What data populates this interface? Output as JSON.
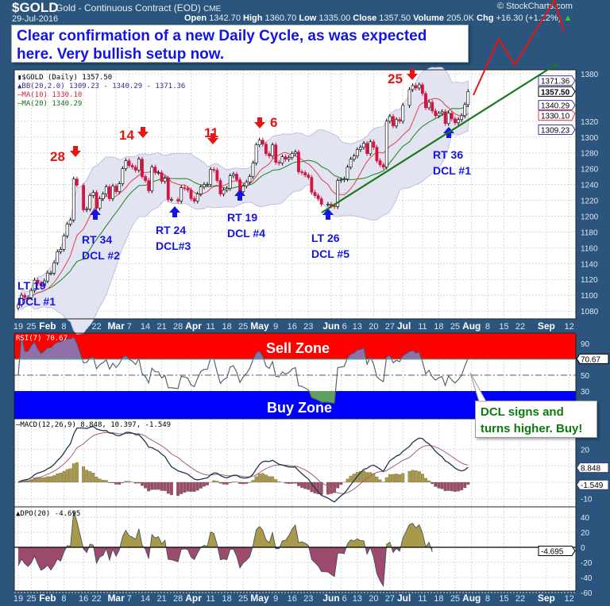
{
  "header": {
    "symbol": "$GOLD",
    "name": "Gold - Continuous Contract (EOD)",
    "exchange": "CME",
    "date": "29-Jul-2016",
    "open_label": "Open",
    "open": "1342.70",
    "high_label": "High",
    "high": "1360.70",
    "low_label": "Low",
    "low": "1335.00",
    "close_label": "Close",
    "close": "1357.50",
    "volume_label": "Volume",
    "volume": "205.0K",
    "chg_label": "Chg",
    "chg": "+16.30 (+1.22%)",
    "brand": "© StockCharts.com"
  },
  "annotation": "Clear confirmation of a new Daily Cycle, as was expected here.  Very bullish setup now.",
  "callout": "DCL signs and turns higher.  Buy!",
  "cycle_labels": {
    "tops": [
      "28",
      "14",
      "11",
      "6",
      "25"
    ],
    "lows": [
      {
        "line1": "LT 19",
        "line2": "DCL #1"
      },
      {
        "line1": "RT 34",
        "line2": "DCL #2"
      },
      {
        "line1": "RT 24",
        "line2": "DCL#3"
      },
      {
        "line1": "RT 19",
        "line2": "DCL #4"
      },
      {
        "line1": "LT 26",
        "line2": "DCL #5"
      },
      {
        "line1": "RT 36",
        "line2": "DCL #1"
      }
    ]
  },
  "zones": {
    "sell": "Sell Zone",
    "buy": "Buy Zone"
  },
  "legends": {
    "price": "$GOLD (Daily) 1357.50",
    "bb": "BB(20,2.0) 1309.23 - 1340.29 - 1371.36",
    "ma10": "MA(10) 1330.10",
    "ma20": "MA(20) 1340.29",
    "rsi": "RSI(7) 70.67",
    "macd": "MACD(12,26,9) 8.848, 10.397, -1.549",
    "dpo": "DPO(20) -4.695"
  },
  "colors": {
    "frame": "#2b557d",
    "up_candle": "#ffffff",
    "down_candle": "#d4143f",
    "ma10": "#e0404a",
    "ma20": "#2a8a2a",
    "bb_fill": "#e3e4f2",
    "sell_zone": "#ff0000",
    "buy_zone": "#0000ff",
    "trendline": "#1a7a1a",
    "projection": "#ee1111",
    "annotation_text": "#1414e6",
    "hist_pos": "#a89a4a",
    "hist_neg": "#9c4a6e"
  },
  "chart_data": [
    {
      "type": "candlestick",
      "title": "$GOLD (Daily) 1357.50",
      "x_unit": "weekday rows, Monday to Friday",
      "weeks": [
        {
          "week": "2016-01-18",
          "closes": [
            null,
            1088,
            1100,
            1097,
            1097
          ]
        },
        {
          "week": "2016-01-25",
          "closes": [
            1106,
            1119,
            1115,
            1112,
            1118
          ]
        },
        {
          "week": "2016-02-01",
          "closes": [
            1128,
            1128,
            1141,
            1155,
            1158
          ]
        },
        {
          "week": "2016-02-08",
          "closes": [
            1175,
            1190,
            1195,
            1247,
            1239
          ]
        },
        {
          "week": "2016-02-15",
          "closes": [
            null,
            1208,
            1209,
            1226,
            1230
          ]
        },
        {
          "week": "2016-02-22",
          "closes": [
            1210,
            1222,
            1228,
            1237,
            1222
          ]
        },
        {
          "week": "2016-02-29",
          "closes": [
            1238,
            1231,
            1241,
            1260,
            1270
          ]
        },
        {
          "week": "2016-03-07",
          "closes": [
            1264,
            1262,
            1258,
            1272,
            1250
          ]
        },
        {
          "week": "2016-03-14",
          "closes": [
            1245,
            1232,
            1262,
            1255,
            1255
          ]
        },
        {
          "week": "2016-03-21",
          "closes": [
            1244,
            1248,
            1221,
            1221,
            null
          ]
        },
        {
          "week": "2016-03-28",
          "closes": [
            1219,
            1236,
            1235,
            1233,
            1222
          ]
        },
        {
          "week": "2016-04-04",
          "closes": [
            1219,
            1228,
            1237,
            1240,
            1240
          ]
        },
        {
          "week": "2016-04-11",
          "closes": [
            1259,
            1258,
            1245,
            1228,
            1233
          ]
        },
        {
          "week": "2016-04-18",
          "closes": [
            1235,
            1251,
            1253,
            1246,
            1231
          ]
        },
        {
          "week": "2016-04-25",
          "closes": [
            1238,
            1243,
            1250,
            1267,
            1290
          ]
        },
        {
          "week": "2016-05-02",
          "closes": [
            1296,
            1291,
            1279,
            1276,
            1290
          ]
        },
        {
          "week": "2016-05-09",
          "closes": [
            1268,
            1267,
            1275,
            1272,
            1274
          ]
        },
        {
          "week": "2016-05-16",
          "closes": [
            1279,
            1281,
            1256,
            1255,
            1252
          ]
        },
        {
          "week": "2016-05-23",
          "closes": [
            1249,
            1230,
            1226,
            1222,
            1215
          ]
        },
        {
          "week": "2016-05-30",
          "closes": [
            null,
            1215,
            1213,
            1212,
            1245
          ]
        },
        {
          "week": "2016-06-06",
          "closes": [
            1246,
            1247,
            1262,
            1272,
            1276
          ]
        },
        {
          "week": "2016-06-13",
          "closes": [
            1284,
            1287,
            1292,
            1279,
            1294
          ]
        },
        {
          "week": "2016-06-20",
          "closes": [
            1287,
            1270,
            1265,
            1262,
            1320
          ]
        },
        {
          "week": "2016-06-27",
          "closes": [
            1326,
            1314,
            1322,
            1320,
            1340
          ]
        },
        {
          "week": "2016-07-04",
          "closes": [
            null,
            1360,
            1365,
            1362,
            1366
          ]
        },
        {
          "week": "2016-07-11",
          "closes": [
            1355,
            1337,
            1344,
            1333,
            1327
          ]
        },
        {
          "week": "2016-07-18",
          "closes": [
            1330,
            1332,
            1317,
            1330,
            1323
          ]
        },
        {
          "week": "2016-07-25",
          "closes": [
            1318,
            1322,
            1327,
            1341,
            1357.5
          ]
        }
      ],
      "ylim": [
        1070,
        1385
      ],
      "y_ticks": [
        1080,
        1100,
        1120,
        1140,
        1160,
        1180,
        1200,
        1220,
        1240,
        1260,
        1280,
        1300,
        1320,
        1380
      ],
      "price_tags": [
        {
          "label": "1371.36",
          "value": 1371.36,
          "color": "#3a3ab0"
        },
        {
          "label": "1357.50",
          "value": 1357.5,
          "color": "#000000"
        },
        {
          "label": "1340.29",
          "value": 1340.29,
          "color": "#3a3ab0"
        },
        {
          "label": "1330.10",
          "value": 1330.1,
          "color": "#e0404a"
        },
        {
          "label": "1309.23",
          "value": 1309.23,
          "color": "#3a3ab0"
        }
      ],
      "overlays": [
        "BB(20,2.0)",
        "MA(10)",
        "MA(20)"
      ],
      "grid": true
    },
    {
      "type": "line",
      "name": "RSI(7)",
      "ylim": [
        20,
        100
      ],
      "y_ticks": [
        90,
        50,
        30
      ],
      "last_tag": "70.67",
      "bands": {
        "sell_above": 70,
        "buy_below": 30
      }
    },
    {
      "type": "line",
      "name": "MACD(12,26,9)",
      "ylim": [
        -15,
        38
      ],
      "y_ticks": [
        20,
        -10
      ],
      "tags": [
        "8.848",
        "-1.549"
      ]
    },
    {
      "type": "area",
      "name": "DPO(20)",
      "ylim": [
        -62,
        50
      ],
      "y_ticks": [
        40,
        20,
        0,
        -20,
        -40,
        -60
      ],
      "last_tag": "-4.695"
    }
  ],
  "x_ticks": [
    {
      "label": "19",
      "date": "2016-01-19"
    },
    {
      "label": "25",
      "date": "2016-01-25"
    },
    {
      "label": "Feb",
      "date": "2016-02-01",
      "bold": true
    },
    {
      "label": "8",
      "date": "2016-02-08"
    },
    {
      "label": "16",
      "date": "2016-02-16"
    },
    {
      "label": "22",
      "date": "2016-02-22"
    },
    {
      "label": "Mar",
      "date": "2016-03-01",
      "bold": true
    },
    {
      "label": "7",
      "date": "2016-03-07"
    },
    {
      "label": "14",
      "date": "2016-03-14"
    },
    {
      "label": "21",
      "date": "2016-03-21"
    },
    {
      "label": "28",
      "date": "2016-03-28"
    },
    {
      "label": "Apr",
      "date": "2016-04-01",
      "bold": true
    },
    {
      "label": "11",
      "date": "2016-04-11"
    },
    {
      "label": "18",
      "date": "2016-04-18"
    },
    {
      "label": "25",
      "date": "2016-04-25"
    },
    {
      "label": "May",
      "date": "2016-05-02",
      "bold": true
    },
    {
      "label": "9",
      "date": "2016-05-09"
    },
    {
      "label": "16",
      "date": "2016-05-16"
    },
    {
      "label": "23",
      "date": "2016-05-23"
    },
    {
      "label": "Jun",
      "date": "2016-06-01",
      "bold": true
    },
    {
      "label": "6",
      "date": "2016-06-06"
    },
    {
      "label": "13",
      "date": "2016-06-13"
    },
    {
      "label": "20",
      "date": "2016-06-20"
    },
    {
      "label": "27",
      "date": "2016-06-27"
    },
    {
      "label": "Jul",
      "date": "2016-07-01",
      "bold": true
    },
    {
      "label": "11",
      "date": "2016-07-11"
    },
    {
      "label": "18",
      "date": "2016-07-18"
    },
    {
      "label": "25",
      "date": "2016-07-25"
    },
    {
      "label": "Aug",
      "date": "2016-08-01",
      "bold": true
    },
    {
      "label": "8",
      "date": "2016-08-08"
    },
    {
      "label": "15",
      "date": "2016-08-15"
    },
    {
      "label": "22",
      "date": "2016-08-22"
    },
    {
      "label": "Sep",
      "date": "2016-09-01",
      "bold": true
    },
    {
      "label": "12",
      "date": "2016-09-12"
    }
  ]
}
